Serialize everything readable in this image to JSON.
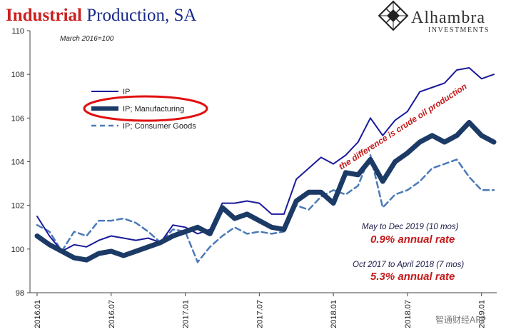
{
  "header": {
    "title_red": "Industrial",
    "title_blue": " Production, SA",
    "subtitle": "March 2016=100"
  },
  "logo": {
    "name": "Alhambra",
    "sub": "INVESTMENTS",
    "icon": "diamond-lattice-icon"
  },
  "watermark": "智通财经APP",
  "chart_data": {
    "type": "line",
    "title": "Industrial Production, SA",
    "subtitle": "March 2016=100",
    "x": [
      "2016.01",
      "2016.02",
      "2016.03",
      "2016.04",
      "2016.05",
      "2016.06",
      "2016.07",
      "2016.08",
      "2016.09",
      "2016.10",
      "2016.11",
      "2016.12",
      "2017.01",
      "2017.02",
      "2017.03",
      "2017.04",
      "2017.05",
      "2017.06",
      "2017.07",
      "2017.08",
      "2017.09",
      "2017.10",
      "2017.11",
      "2017.12",
      "2018.01",
      "2018.02",
      "2018.03",
      "2018.04",
      "2018.05",
      "2018.06",
      "2018.07",
      "2018.08",
      "2018.09",
      "2018.10",
      "2018.11",
      "2018.12",
      "2019.01",
      "2019.02"
    ],
    "xticks": [
      "2016.01",
      "2016.07",
      "2017.01",
      "2017.07",
      "2018.01",
      "2018.07",
      "2019.01"
    ],
    "ylim": [
      98,
      110
    ],
    "yticks": [
      98,
      100,
      102,
      104,
      106,
      108,
      110
    ],
    "grid": false,
    "legend_position": "upper-left",
    "series": [
      {
        "name": "IP",
        "color": "#1a1a9c",
        "style": "solid",
        "width": 2,
        "values": [
          101.5,
          100.6,
          99.9,
          100.2,
          100.1,
          100.4,
          100.6,
          100.5,
          100.4,
          100.5,
          100.3,
          101.1,
          101.0,
          100.7,
          100.9,
          102.1,
          102.1,
          102.2,
          102.1,
          101.6,
          101.6,
          103.2,
          103.7,
          104.2,
          103.9,
          104.3,
          104.9,
          106.0,
          105.2,
          105.9,
          106.3,
          107.2,
          107.4,
          107.6,
          108.2,
          108.3,
          107.8,
          108.0
        ]
      },
      {
        "name": "IP; Manufacturing",
        "color": "#1c3a66",
        "style": "solid",
        "width": 7,
        "values": [
          100.6,
          100.2,
          99.9,
          99.6,
          99.5,
          99.8,
          99.9,
          99.7,
          99.9,
          100.1,
          100.3,
          100.6,
          100.8,
          101.0,
          100.7,
          101.9,
          101.4,
          101.6,
          101.3,
          101.0,
          100.9,
          102.2,
          102.6,
          102.6,
          102.1,
          103.5,
          103.4,
          104.1,
          103.1,
          104.0,
          104.4,
          104.9,
          105.2,
          104.9,
          105.2,
          105.8,
          105.2,
          104.9
        ]
      },
      {
        "name": "IP; Consumer Goods",
        "color": "#4b7ab8",
        "style": "dashed",
        "width": 2.5,
        "values": [
          101.1,
          100.8,
          99.9,
          100.8,
          100.6,
          101.3,
          101.3,
          101.4,
          101.2,
          100.8,
          100.3,
          100.9,
          100.8,
          99.4,
          100.1,
          100.6,
          101.0,
          100.7,
          100.8,
          100.7,
          100.8,
          102.0,
          101.8,
          102.4,
          102.7,
          102.5,
          102.9,
          104.3,
          101.9,
          102.5,
          102.7,
          103.1,
          103.7,
          103.9,
          104.1,
          103.3,
          102.7,
          102.7
        ]
      }
    ],
    "annotations": {
      "diagonal": "the difference is crude oil production",
      "period1_label": "May to Dec 2019 (10 mos)",
      "period1_rate": "0.9% annual rate",
      "period2_label": "Oct 2017 to April 2018 (7 mos)",
      "period2_rate": "5.3% annual rate"
    }
  }
}
